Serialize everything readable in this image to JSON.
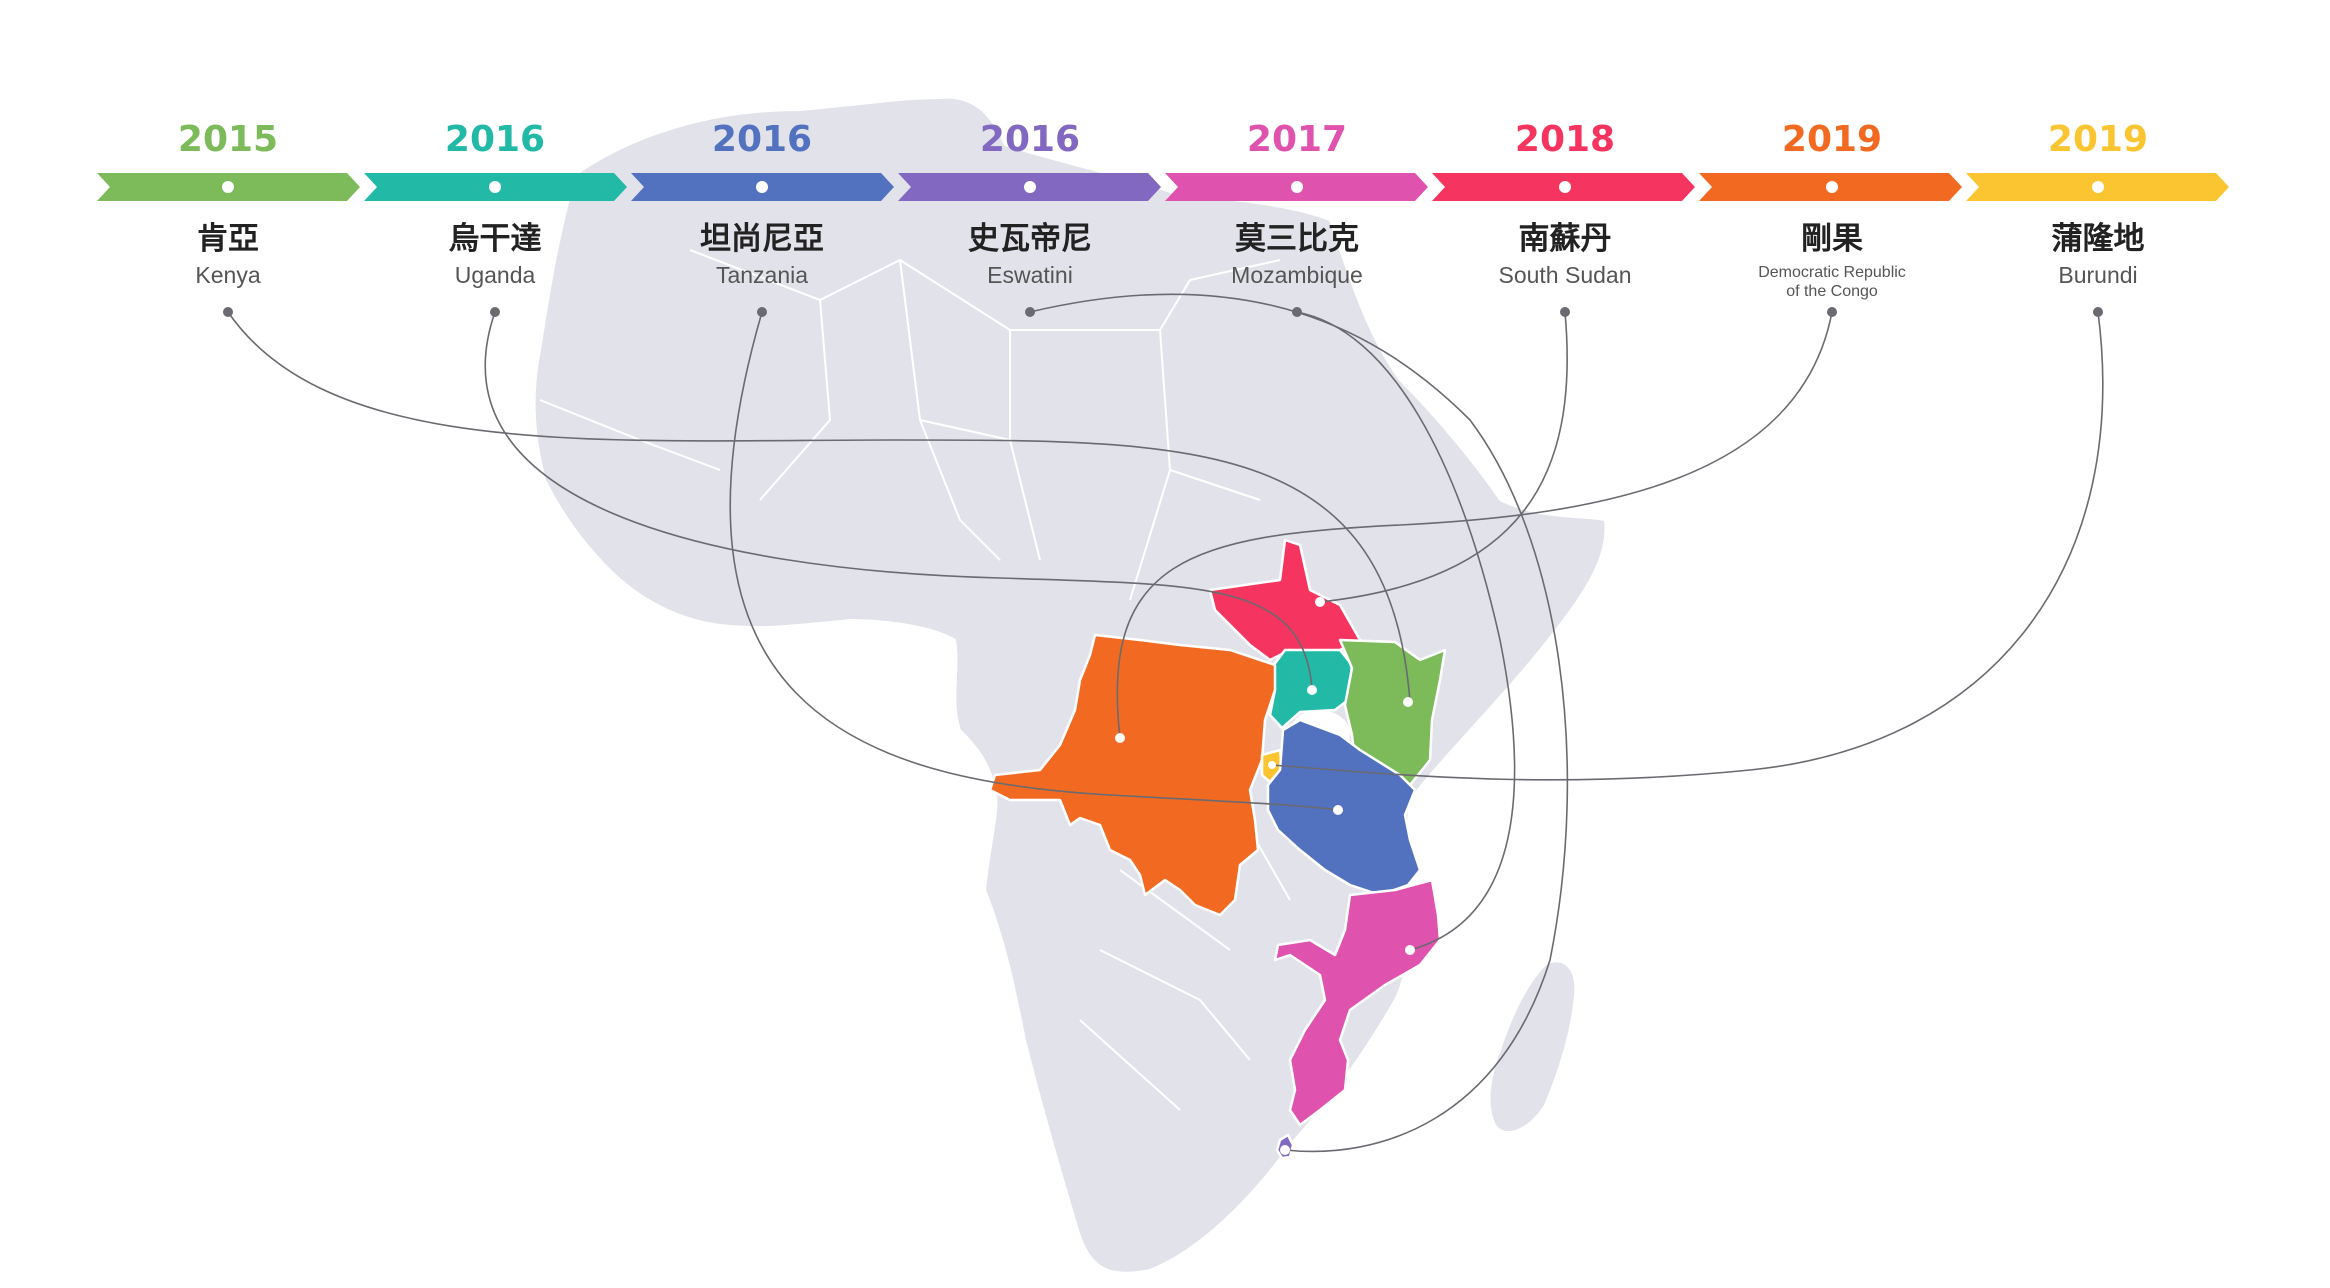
{
  "colors": {
    "land": "#e2e2ea",
    "connector": "#6a6a70",
    "lake": "#ffffff"
  },
  "timeline": [
    {
      "year": "2015",
      "zh": "肯亞",
      "en": "Kenya",
      "color": "#7cba5a"
    },
    {
      "year": "2016",
      "zh": "烏干達",
      "en": "Uganda",
      "color": "#22b9a6"
    },
    {
      "year": "2016",
      "zh": "坦尚尼亞",
      "en": "Tanzania",
      "color": "#5271be"
    },
    {
      "year": "2016",
      "zh": "史瓦帝尼",
      "en": "Eswatini",
      "color": "#8368c2"
    },
    {
      "year": "2017",
      "zh": "莫三比克",
      "en": "Mozambique",
      "color": "#df52ad"
    },
    {
      "year": "2018",
      "zh": "南蘇丹",
      "en": "South Sudan",
      "color": "#f5355f"
    },
    {
      "year": "2019",
      "zh": "剛果",
      "en_line1": "Democratic Republic",
      "en_line2": "of the Congo",
      "color": "#f26a22"
    },
    {
      "year": "2019",
      "zh": "蒲隆地",
      "en": "Burundi",
      "color": "#fbc531"
    }
  ],
  "map_icons": [
    "africa-continent-map"
  ]
}
